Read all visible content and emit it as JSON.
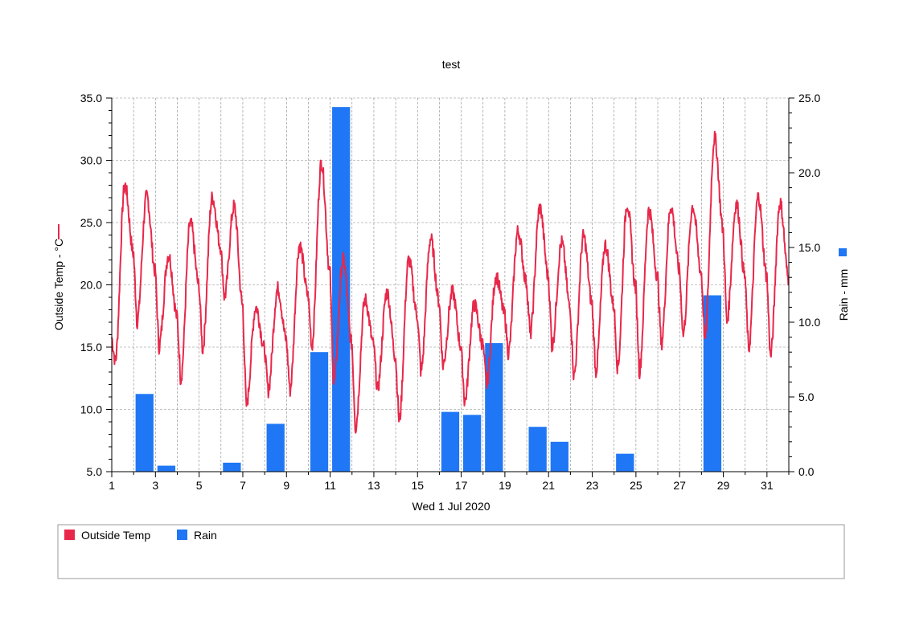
{
  "chart_data": {
    "type": "line+bar",
    "title": "test",
    "xlabel": "Wed 1 Jul 2020",
    "x_range": [
      1,
      32
    ],
    "x_ticks": [
      "1",
      "3",
      "5",
      "7",
      "9",
      "11",
      "13",
      "15",
      "17",
      "19",
      "21",
      "23",
      "25",
      "27",
      "29",
      "31"
    ],
    "y_left": {
      "label": "Outside Temp - °C",
      "range": [
        5.0,
        35.0
      ],
      "ticks": [
        "5.0",
        "10.0",
        "15.0",
        "20.0",
        "25.0",
        "30.0",
        "35.0"
      ]
    },
    "y_right": {
      "label": "Rain - mm",
      "range": [
        0.0,
        25.0
      ],
      "ticks": [
        "0.0",
        "5.0",
        "10.0",
        "15.0",
        "20.0",
        "25.0"
      ]
    },
    "grid": true,
    "series": [
      {
        "name": "Outside Temp",
        "type": "line",
        "color": "#e8284a",
        "axis": "left",
        "daily_min_max": [
          [
            13.8,
            28.0
          ],
          [
            17.0,
            27.1
          ],
          [
            15.0,
            22.4
          ],
          [
            12.4,
            25.0
          ],
          [
            14.8,
            27.0
          ],
          [
            19.0,
            26.3
          ],
          [
            10.3,
            18.2
          ],
          [
            11.5,
            19.7
          ],
          [
            11.5,
            23.2
          ],
          [
            15.0,
            29.8
          ],
          [
            12.0,
            22.0
          ],
          [
            8.5,
            18.8
          ],
          [
            11.5,
            19.4
          ],
          [
            9.0,
            22.0
          ],
          [
            13.0,
            23.7
          ],
          [
            13.5,
            19.4
          ],
          [
            10.6,
            18.4
          ],
          [
            12.0,
            20.7
          ],
          [
            14.5,
            24.3
          ],
          [
            16.0,
            26.2
          ],
          [
            15.0,
            23.4
          ],
          [
            12.6,
            23.9
          ],
          [
            13.0,
            23.2
          ],
          [
            13.3,
            26.5
          ],
          [
            13.0,
            26.0
          ],
          [
            15.2,
            26.3
          ],
          [
            16.0,
            26.3
          ],
          [
            15.5,
            31.8
          ],
          [
            17.0,
            26.5
          ],
          [
            14.8,
            27.1
          ],
          [
            14.2,
            26.6
          ]
        ]
      },
      {
        "name": "Rain",
        "type": "bar",
        "color": "#1f77f5",
        "axis": "right",
        "x": [
          2.5,
          3.5,
          6.5,
          8.5,
          10.5,
          11.5,
          16.5,
          17.5,
          18.5,
          20.5,
          21.5,
          24.5,
          28.5
        ],
        "values": [
          5.2,
          0.4,
          0.6,
          3.2,
          8.0,
          24.4,
          4.0,
          3.8,
          8.6,
          3.0,
          2.0,
          1.2,
          11.8
        ]
      }
    ],
    "legend": {
      "placement": "bottom",
      "entries": [
        {
          "label": "Outside Temp",
          "color": "#e8284a"
        },
        {
          "label": "Rain",
          "color": "#1f77f5"
        }
      ]
    }
  }
}
